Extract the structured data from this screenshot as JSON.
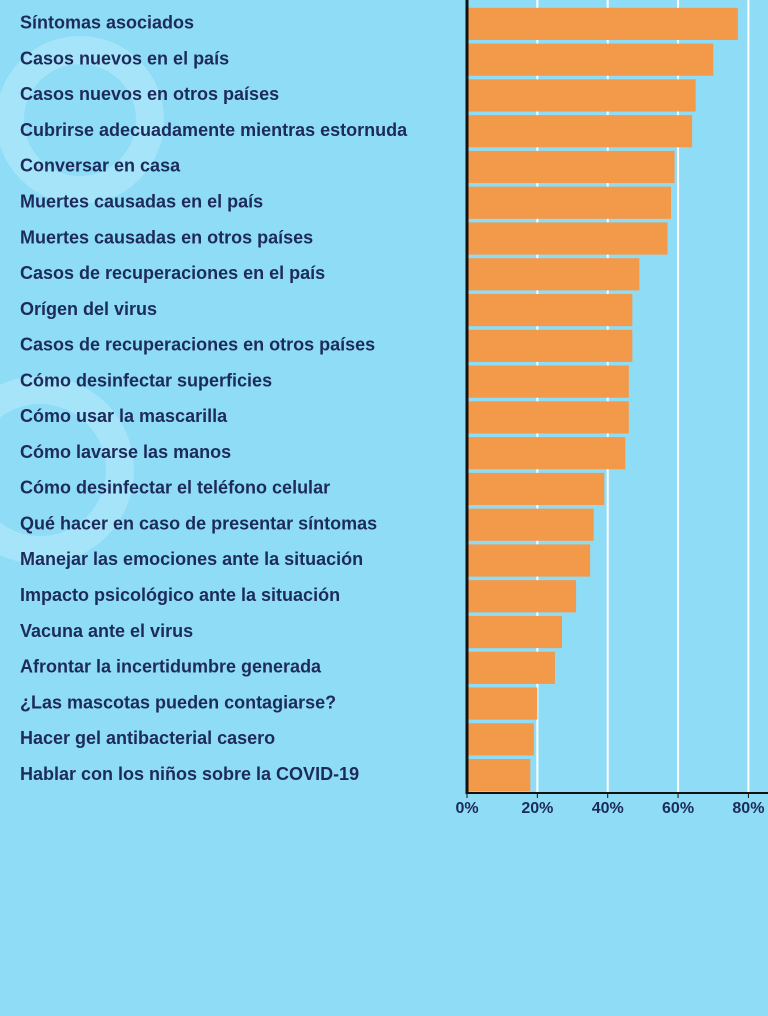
{
  "chart_data": {
    "type": "barh",
    "categories": [
      "Síntomas asociados",
      "Casos nuevos en el país",
      "Casos nuevos en otros países",
      "Cubrirse adecuadamente mientras estornuda",
      "Conversar en casa",
      "Muertes causadas en el país",
      "Muertes causadas en otros países",
      "Casos de recuperaciones en el país",
      "Orígen del virus",
      "Casos de recuperaciones en otros países",
      "Cómo desinfectar superficies",
      "Cómo usar la mascarilla",
      "Cómo lavarse las manos",
      "Cómo desinfectar el teléfono celular",
      "Qué hacer en caso de presentar síntomas",
      "Manejar las emociones ante la situación",
      "Impacto psicológico ante la situación",
      "Vacuna ante el virus",
      "Afrontar la incertidumbre generada",
      "¿Las mascotas pueden contagiarse?",
      "Hacer gel antibacterial casero",
      "Hablar con los niños sobre la COVID-19"
    ],
    "values": [
      77,
      70,
      65,
      64,
      59,
      58,
      57,
      49,
      47,
      47,
      46,
      46,
      45,
      39,
      36,
      35,
      31,
      27,
      25,
      20,
      19,
      18
    ],
    "color": "#f3994a",
    "xlim": [
      0,
      85
    ],
    "xticks": [
      {
        "value": 0,
        "label": "0%"
      },
      {
        "value": 20,
        "label": "20%"
      },
      {
        "value": 40,
        "label": "40%"
      },
      {
        "value": 60,
        "label": "60%"
      },
      {
        "value": 80,
        "label": "80%"
      }
    ],
    "grid": true
  }
}
